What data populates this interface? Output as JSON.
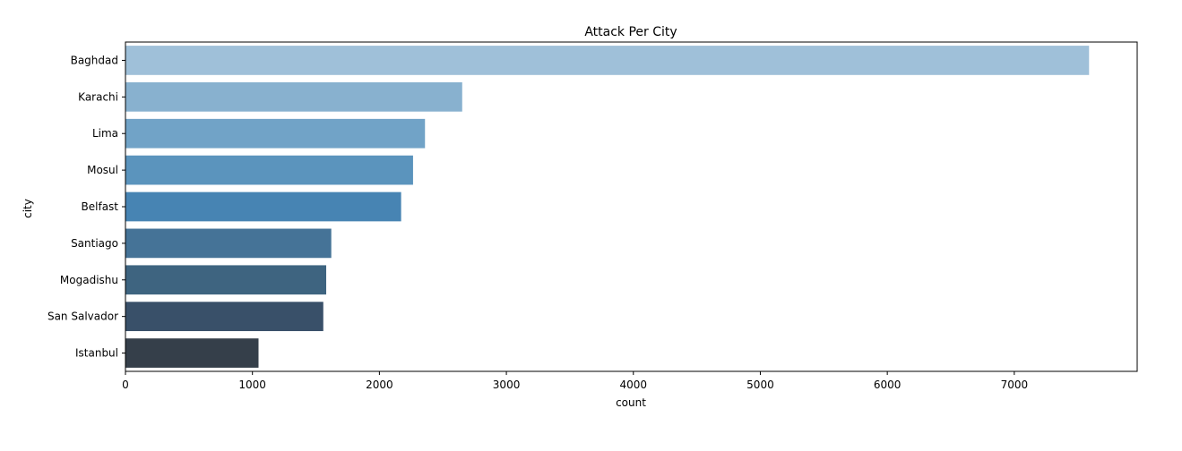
{
  "chart_data": {
    "type": "bar",
    "orientation": "horizontal",
    "title": "Attack Per City",
    "xlabel": "count",
    "ylabel": "city",
    "categories": [
      "Baghdad",
      "Karachi",
      "Lima",
      "Mosul",
      "Belfast",
      "Santiago",
      "Mogadishu",
      "San Salvador",
      "Istanbul"
    ],
    "values": [
      7589,
      2652,
      2359,
      2265,
      2171,
      1621,
      1581,
      1558,
      1048
    ],
    "xlim": [
      0,
      7968
    ],
    "x_ticks": [
      0,
      1000,
      2000,
      3000,
      4000,
      5000,
      6000,
      7000
    ],
    "colors": [
      "#9fc0d9",
      "#88b1cf",
      "#71a3c7",
      "#5b94bd",
      "#4784b3",
      "#457397",
      "#3e6480",
      "#395069",
      "#353f4a"
    ],
    "grid": false,
    "legend": "none"
  }
}
